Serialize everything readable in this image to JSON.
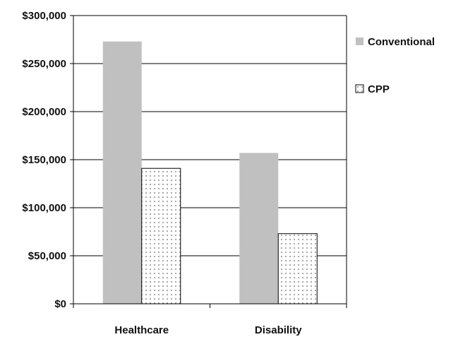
{
  "chart_data": {
    "type": "bar",
    "categories": [
      "Healthcare",
      "Disability"
    ],
    "series": [
      {
        "name": "Conventional",
        "values": [
          273000,
          157000
        ],
        "fill": "solid",
        "color": "#c0c0c0"
      },
      {
        "name": "CPP",
        "values": [
          141000,
          73000
        ],
        "fill": "dotted",
        "color": "#ffffff"
      }
    ],
    "ylim": [
      0,
      300000
    ],
    "yticks": [
      0,
      50000,
      100000,
      150000,
      200000,
      250000,
      300000
    ],
    "ytick_labels": [
      "$0",
      "$50,000",
      "$100,000",
      "$150,000",
      "$200,000",
      "$250,000",
      "$300,000"
    ],
    "grid": true,
    "legend_position": "right",
    "title": "",
    "xlabel": "",
    "ylabel": ""
  }
}
